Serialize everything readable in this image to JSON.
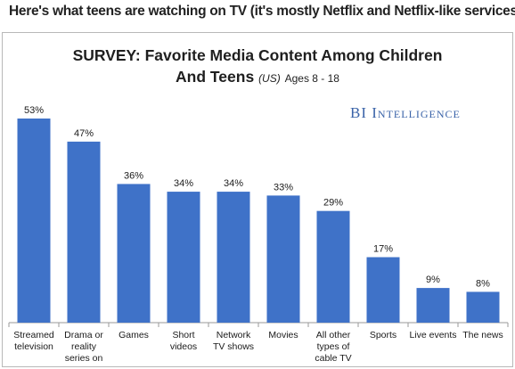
{
  "headline": "Here's what teens are watching on TV (it's mostly Netflix and Netflix-like services).",
  "chart_title": {
    "line1": "SURVEY: Favorite Media Content Among Children",
    "line2_main": "And Teens",
    "line2_region": "(US)",
    "line2_ages": "Ages 8 - 18"
  },
  "brand": "BI Intelligence",
  "colors": {
    "bar": "#3f72c8",
    "axis": "#9a9a9a",
    "brand": "#3a63a8"
  },
  "chart_data": {
    "type": "bar",
    "title": "SURVEY: Favorite Media Content Among Children And Teens (US) Ages 8 - 18",
    "categories": [
      [
        "Streamed",
        "television"
      ],
      [
        "Drama or",
        "reality",
        "series on"
      ],
      [
        "Games"
      ],
      [
        "Short",
        "videos"
      ],
      [
        "Network",
        "TV shows"
      ],
      [
        "Movies"
      ],
      [
        "All other",
        "types of",
        "cable TV"
      ],
      [
        "Sports"
      ],
      [
        "Live events"
      ],
      [
        "The news"
      ]
    ],
    "values": [
      53,
      47,
      36,
      34,
      34,
      33,
      29,
      17,
      9,
      8
    ],
    "value_labels": [
      "53%",
      "47%",
      "36%",
      "34%",
      "34%",
      "33%",
      "29%",
      "17%",
      "9%",
      "8%"
    ],
    "ylim": [
      0,
      56
    ],
    "grid": false,
    "legend": "none"
  }
}
